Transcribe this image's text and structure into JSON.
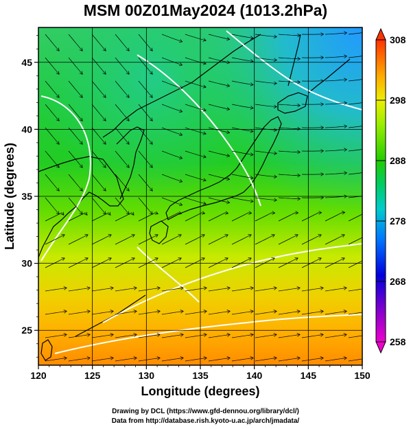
{
  "title": "MSM 00Z01May2024 (1013.2hPa)",
  "xlabel": "Longitude (degrees)",
  "ylabel": "Latitude  (degrees)",
  "x_ticks": [
    "120",
    "125",
    "130",
    "135",
    "140",
    "145",
    "150"
  ],
  "y_ticks": [
    "25",
    "30",
    "35",
    "40",
    "45"
  ],
  "colorbar_ticks": [
    "308",
    "298",
    "288",
    "278",
    "268",
    "258"
  ],
  "credit_line1": "Drawing by DCL (https://www.gfd-dennou.org/library/dcl/)",
  "credit_line2": "Data from http://database.rish.kyoto-u.ac.jp/arch/jmadata/",
  "colors": {
    "land_outline": "#000000",
    "contour": "#ffffff",
    "streamline": "#000000"
  },
  "chart_data": {
    "type": "heatmap",
    "title": "MSM 00Z01May2024 (1013.2hPa)",
    "xlabel": "Longitude (degrees)",
    "ylabel": "Latitude  (degrees)",
    "xlim": [
      120,
      150
    ],
    "ylim": [
      22.4,
      47.6
    ],
    "colorbar_range": [
      258,
      308
    ],
    "colorbar_ticks": [
      308,
      298,
      288,
      278,
      268,
      258
    ],
    "grid": true
  }
}
